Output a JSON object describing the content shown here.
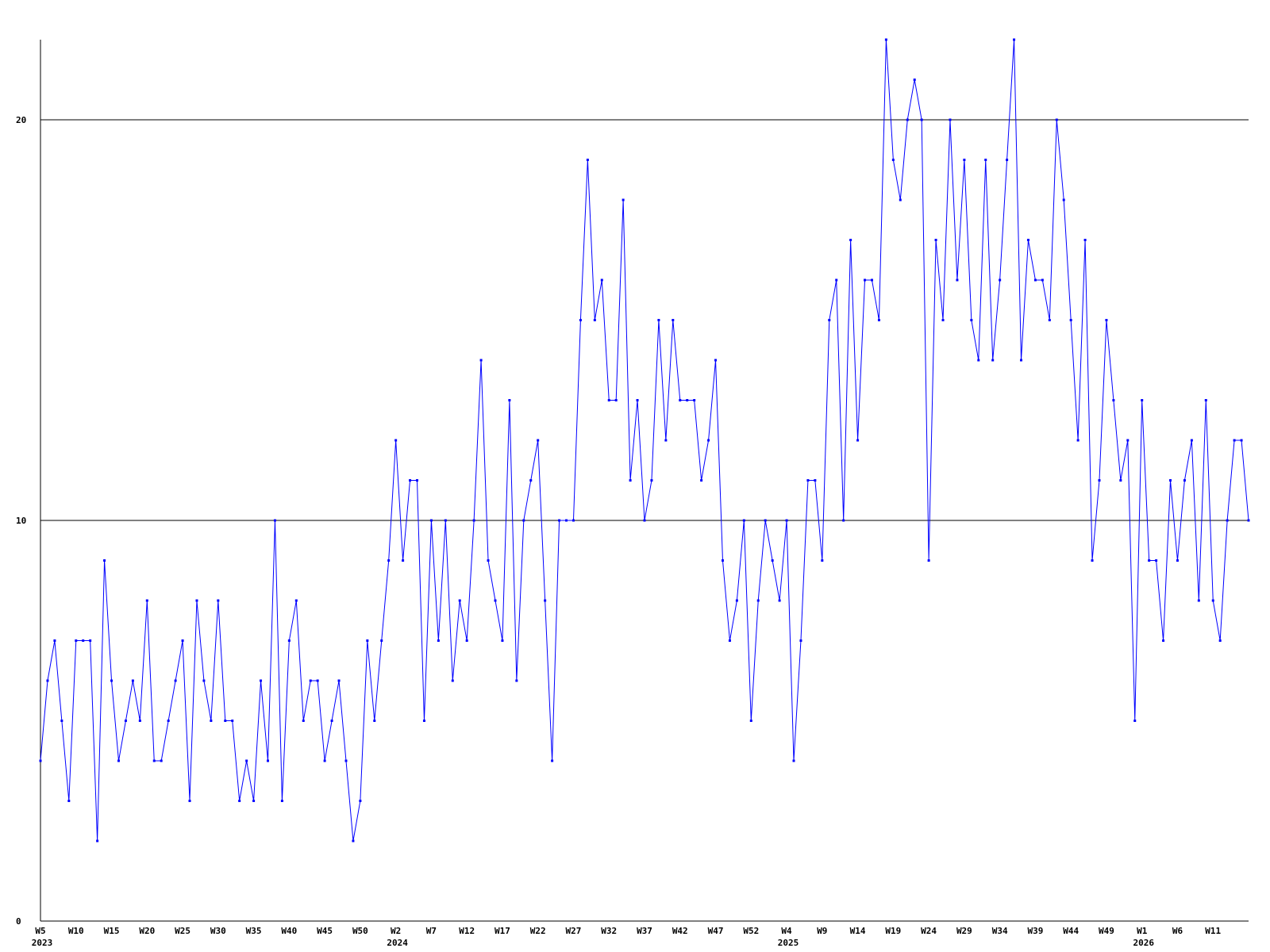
{
  "chart_data": {
    "type": "line",
    "categories": [
      "W5",
      null,
      null,
      null,
      null,
      "W10",
      null,
      null,
      null,
      null,
      "W15",
      null,
      null,
      null,
      null,
      "W20",
      null,
      null,
      null,
      null,
      "W25",
      null,
      null,
      null,
      null,
      "W30",
      null,
      null,
      null,
      null,
      "W35",
      null,
      null,
      null,
      null,
      "W40",
      null,
      null,
      null,
      null,
      "W45",
      null,
      null,
      null,
      null,
      "W50",
      null,
      null,
      null,
      null,
      "W2",
      null,
      null,
      null,
      null,
      "W7",
      null,
      null,
      null,
      null,
      "W12",
      null,
      null,
      null,
      null,
      "W17",
      null,
      null,
      null,
      null,
      "W22",
      null,
      null,
      null,
      null,
      "W27",
      null,
      null,
      null,
      null,
      "W32",
      null,
      null,
      null,
      null,
      "W37",
      null,
      null,
      null,
      null,
      "W42",
      null,
      null,
      null,
      null,
      "W47",
      null,
      null,
      null,
      null,
      "W52",
      null,
      null,
      null,
      null,
      "W4",
      null,
      null,
      null,
      null,
      "W9",
      null,
      null,
      null,
      null,
      "W14",
      null,
      null,
      null,
      null,
      "W19",
      null,
      null,
      null,
      null,
      "W24",
      null,
      null,
      null,
      null,
      "W29",
      null,
      null,
      null,
      null,
      "W34",
      null,
      null,
      null,
      null,
      "W39",
      null,
      null,
      null,
      null,
      "W44",
      null,
      null,
      null,
      null,
      "W49",
      null,
      null,
      null,
      null,
      "W1",
      null,
      null,
      null,
      null,
      "W6",
      null,
      null,
      null,
      null,
      "W11",
      null,
      null,
      null,
      null,
      null
    ],
    "category_years": [
      "2023",
      null,
      null,
      null,
      null,
      null,
      null,
      null,
      null,
      null,
      null,
      null,
      null,
      null,
      null,
      null,
      null,
      null,
      null,
      null,
      null,
      null,
      null,
      null,
      null,
      null,
      null,
      null,
      null,
      null,
      null,
      null,
      null,
      null,
      null,
      null,
      null,
      null,
      null,
      null,
      null,
      null,
      null,
      null,
      null,
      null,
      null,
      null,
      null,
      null,
      "2024",
      null,
      null,
      null,
      null,
      null,
      null,
      null,
      null,
      null,
      null,
      null,
      null,
      null,
      null,
      null,
      null,
      null,
      null,
      null,
      null,
      null,
      null,
      null,
      null,
      null,
      null,
      null,
      null,
      null,
      null,
      null,
      null,
      null,
      null,
      null,
      null,
      null,
      null,
      null,
      null,
      null,
      null,
      null,
      null,
      null,
      null,
      null,
      null,
      null,
      null,
      null,
      null,
      null,
      null,
      "2025",
      null,
      null,
      null,
      null,
      null,
      null,
      null,
      null,
      null,
      null,
      null,
      null,
      null,
      null,
      null,
      null,
      null,
      null,
      null,
      null,
      null,
      null,
      null,
      null,
      null,
      null,
      null,
      null,
      null,
      null,
      null,
      null,
      null,
      null,
      null,
      null,
      null,
      null,
      null,
      null,
      null,
      null,
      null,
      null,
      null,
      null,
      null,
      null,
      null,
      "2026",
      null,
      null,
      null,
      null,
      null,
      null,
      null,
      null,
      null,
      null,
      null,
      null,
      null,
      null,
      null
    ],
    "series": [
      {
        "color": "#0000ff",
        "values": [
          4,
          6,
          7,
          5,
          3,
          7,
          7,
          7,
          2,
          9,
          6,
          4,
          5,
          6,
          5,
          8,
          4,
          4,
          5,
          6,
          7,
          3,
          8,
          6,
          5,
          8,
          5,
          5,
          3,
          4,
          3,
          6,
          4,
          10,
          3,
          7,
          8,
          5,
          6,
          6,
          4,
          5,
          6,
          4,
          2,
          3,
          7,
          5,
          7,
          9,
          12,
          9,
          11,
          11,
          5,
          10,
          7,
          10,
          6,
          8,
          7,
          10,
          14,
          9,
          8,
          7,
          13,
          6,
          10,
          11,
          12,
          8,
          4,
          10,
          10,
          10,
          15,
          19,
          15,
          16,
          13,
          13,
          18,
          11,
          13,
          10,
          11,
          15,
          12,
          15,
          13,
          13,
          13,
          11,
          12,
          14,
          9,
          7,
          8,
          10,
          5,
          8,
          10,
          9,
          8,
          10,
          4,
          7,
          11,
          11,
          9,
          15,
          16,
          10,
          17,
          12,
          16,
          16,
          15,
          22,
          19,
          18,
          20,
          21,
          20,
          9,
          17,
          15,
          20,
          16,
          19,
          15,
          14,
          19,
          14,
          16,
          19,
          22,
          14,
          17,
          16,
          16,
          15,
          20,
          18,
          15,
          12,
          17,
          9,
          11,
          15,
          13,
          11,
          12,
          5,
          13,
          9,
          9,
          7,
          11,
          9,
          11,
          12,
          8,
          13,
          8,
          7,
          10,
          12,
          12,
          10
        ]
      }
    ],
    "ylim": [
      0,
      22
    ],
    "yticks": [
      0,
      10,
      20
    ],
    "grid": true
  }
}
